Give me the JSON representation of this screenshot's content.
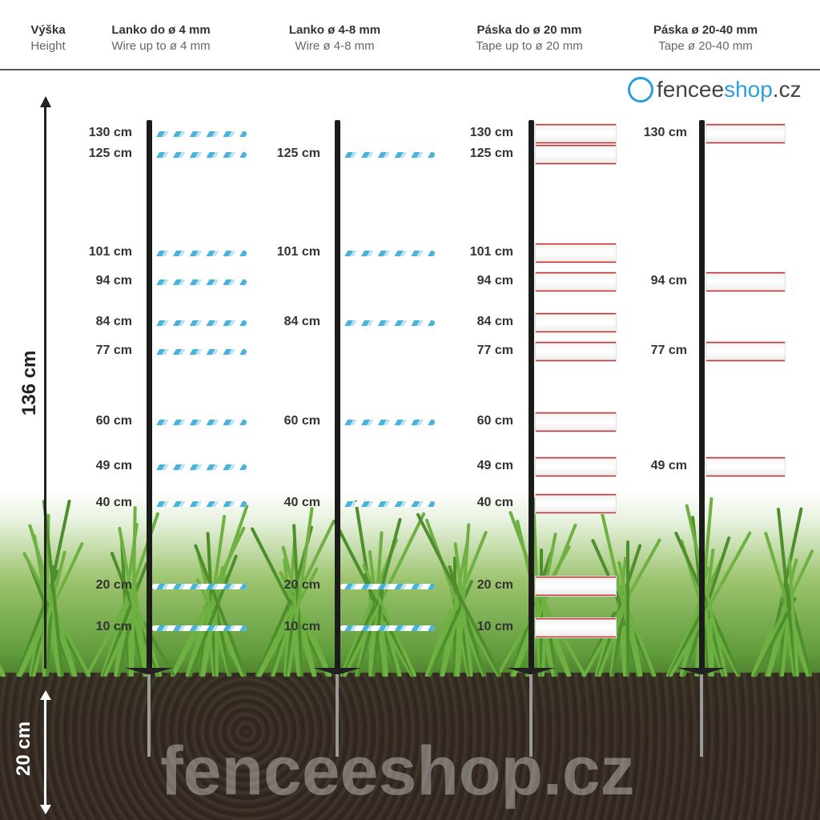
{
  "header": [
    {
      "cz": "Výška",
      "en": "Height"
    },
    {
      "cz": "Lanko do ø 4 mm",
      "en": "Wire up to ø 4 mm"
    },
    {
      "cz": "Lanko ø 4-8 mm",
      "en": "Wire ø 4-8 mm"
    },
    {
      "cz": "Páska do ø 20 mm",
      "en": "Tape up to ø 20 mm"
    },
    {
      "cz": "Páska ø 20-40 mm",
      "en": "Tape ø 20-40 mm"
    }
  ],
  "dimension": {
    "above_ground": "136 cm",
    "below_ground": "20 cm"
  },
  "logo": {
    "part1": "fencee",
    "part2": "shop",
    ".cz": ".cz",
    "text": "fenceeshop.cz",
    "brand_color": "#2a9fe0"
  },
  "watermark": "fenceeshop.cz",
  "posts": [
    {
      "kind": "wire",
      "heights": [
        130,
        125,
        101,
        94,
        84,
        77,
        60,
        49,
        40,
        20,
        10
      ],
      "labels": [
        "130 cm",
        "125 cm",
        "101 cm",
        "94 cm",
        "84 cm",
        "77 cm",
        "60 cm",
        "49 cm",
        "40 cm",
        "20 cm",
        "10 cm"
      ]
    },
    {
      "kind": "wire",
      "heights": [
        125,
        101,
        84,
        60,
        40,
        20,
        10
      ],
      "labels": [
        "125 cm",
        "101 cm",
        "84 cm",
        "60 cm",
        "40 cm",
        "20 cm",
        "10 cm"
      ]
    },
    {
      "kind": "tape",
      "heights": [
        130,
        125,
        101,
        94,
        84,
        77,
        60,
        49,
        40,
        20,
        10
      ],
      "labels": [
        "130 cm",
        "125 cm",
        "101 cm",
        "94 cm",
        "84 cm",
        "77 cm",
        "60 cm",
        "49 cm",
        "40 cm",
        "20 cm",
        "10 cm"
      ]
    },
    {
      "kind": "tape",
      "heights": [
        130,
        94,
        77,
        49
      ],
      "labels": [
        "130 cm",
        "94 cm",
        "77 cm",
        "49 cm"
      ]
    }
  ]
}
